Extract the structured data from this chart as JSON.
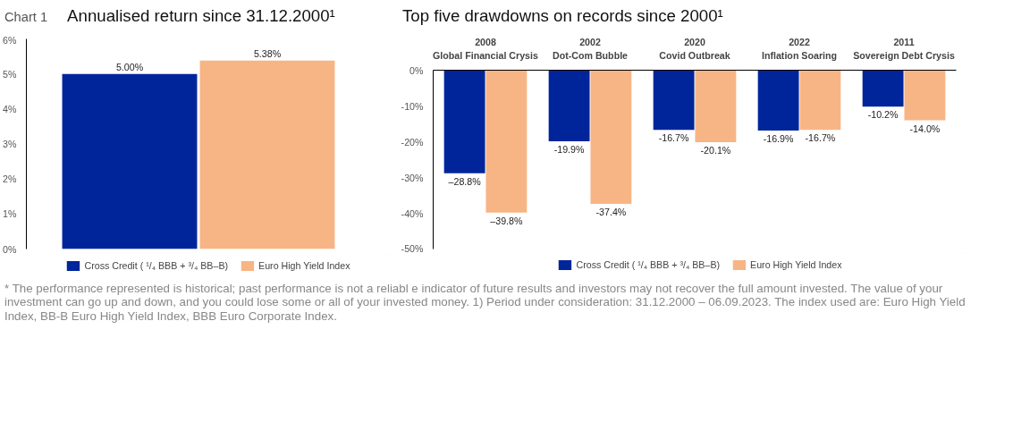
{
  "chart_data": [
    {
      "type": "bar",
      "title": "Annualised return since 31.12.2000¹",
      "annotations": [
        "Chart 1"
      ],
      "categories": [
        null
      ],
      "series": [
        {
          "name": "Cross Credit ( ¹/₄ BBB + ³/₄ BB–B)",
          "color": "#00259a",
          "values": [
            5.0
          ],
          "value_labels": [
            "5.00%"
          ]
        },
        {
          "name": "Euro High Yield Index",
          "color": "#f7b585",
          "values": [
            5.38
          ],
          "value_labels": [
            "5.38%"
          ]
        }
      ],
      "ylim": [
        0,
        6
      ],
      "yticks": [
        {
          "value": 0,
          "label": "0%"
        },
        {
          "value": 1,
          "label": "1%"
        },
        {
          "value": 2,
          "label": "2%"
        },
        {
          "value": 3,
          "label": "3%"
        },
        {
          "value": 4,
          "label": "4%"
        },
        {
          "value": 5,
          "label": "5%"
        },
        {
          "value": 6,
          "label": "6%"
        }
      ],
      "grid": false,
      "legend": "bottom",
      "tick_labels": "y"
    },
    {
      "type": "bar",
      "title": "Top five drawdowns on records since 2000¹",
      "annotations": [
        "* The performance represented is historical; past performance is not a reliabl e indicator of future results and investors may not recover the full amount invested. The value of your investment can go up and down, and you could lose some or all of your invested money. 1) Period under consideration: 31.12.2000 – 06.09.2023. The index used are: Euro High Yield Index, BB-B Euro High Yield Index, BBB Euro Corporate Index."
      ],
      "categories": [
        "2008\nGlobal Financial Crysis",
        "2002\nDot-Com Bubble",
        "2020\nCovid Outbreak",
        "2022\nInflation Soaring",
        "2011\nSovereign Debt Crysis"
      ],
      "series": [
        {
          "name": "Cross Credit ( ¹/₄ BBB + ³/₄ BB–B)",
          "color": "#00259a",
          "values": [
            -28.8,
            -19.9,
            -16.7,
            -16.9,
            -10.2
          ],
          "value_labels": [
            "–28.8%",
            "-19.9%",
            "-16.7%",
            "-16.9%",
            "-10.2%"
          ]
        },
        {
          "name": "Euro High Yield Index",
          "color": "#f7b585",
          "values": [
            -39.8,
            -37.4,
            -20.1,
            -16.7,
            -14.0
          ],
          "value_labels": [
            "–39.8%",
            "-37.4%",
            "-20.1%",
            "-16.7%",
            "-14.0%"
          ]
        }
      ],
      "ylim": [
        -50,
        0
      ],
      "yticks": [
        {
          "value": 0,
          "label": "0%"
        },
        {
          "value": -10,
          "label": "-10%"
        },
        {
          "value": -20,
          "label": "-20%"
        },
        {
          "value": -30,
          "label": "-30%"
        },
        {
          "value": -40,
          "label": "-40%"
        },
        {
          "value": -50,
          "label": "-50%"
        }
      ],
      "grid": false,
      "legend": "bottom"
    }
  ]
}
